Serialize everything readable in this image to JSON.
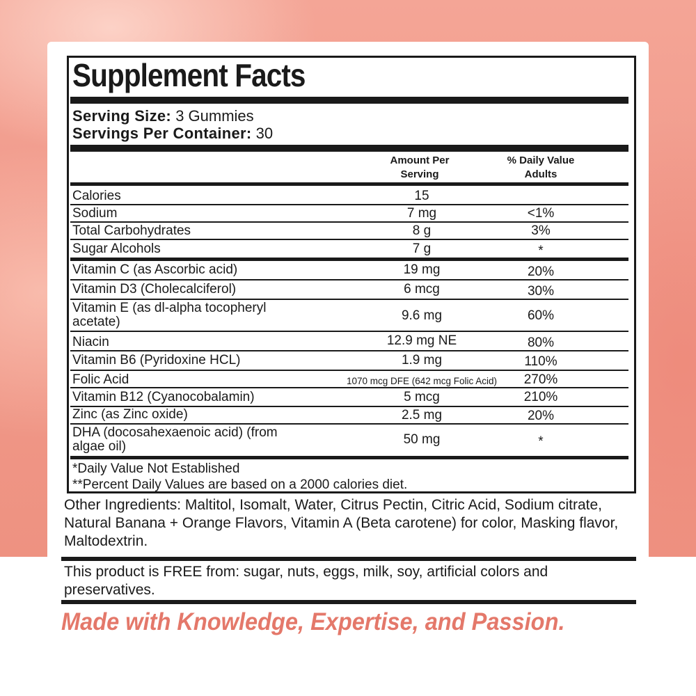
{
  "title": "Supplement Facts",
  "serving_size_label": "Serving Size:",
  "serving_size_value": "3 Gummies",
  "servings_per_container_label": "Servings Per Container:",
  "servings_per_container_value": "30",
  "headers": {
    "amount": "Amount Per Serving",
    "daily_value": "% Daily Value Adults"
  },
  "rows": [
    {
      "name": "Calories",
      "amount": "15",
      "dv": ""
    },
    {
      "name": "Sodium",
      "amount": "7 mg",
      "dv": "<1%"
    },
    {
      "name": "Total Carbohydrates",
      "amount": "8 g",
      "dv": "3%"
    },
    {
      "name": "Sugar Alcohols",
      "amount": "7 g",
      "dv": "*"
    },
    {
      "name": "Vitamin C (as Ascorbic acid)",
      "amount": "19 mg",
      "dv": "20%"
    },
    {
      "name": "Vitamin D3 (Cholecalciferol)",
      "amount": "6 mcg",
      "dv": "30%"
    },
    {
      "name_line1": "Vitamin E (as dl-alpha tocopheryl",
      "name_line2": "acetate)",
      "amount": "9.6 mg",
      "dv": "60%"
    },
    {
      "name": "Niacin",
      "amount": "12.9 mg NE",
      "dv": "80%"
    },
    {
      "name": "Vitamin B6 (Pyridoxine HCL)",
      "amount": "1.9 mg",
      "dv": "110%"
    },
    {
      "name": "Folic Acid",
      "amount": "1070 mcg DFE (642 mcg Folic Acid)",
      "dv": "270%"
    },
    {
      "name": "Vitamin B12 (Cyanocobalamin)",
      "amount": "5 mcg",
      "dv": "210%"
    },
    {
      "name": "Zinc (as Zinc oxide)",
      "amount": "2.5 mg",
      "dv": "20%"
    },
    {
      "name_line1": "DHA (docosahexaenoic acid) (from",
      "name_line2": "algae oil)",
      "amount": "50 mg",
      "dv": "*"
    }
  ],
  "footnotes": [
    "*Daily Value Not Established",
    "**Percent Daily Values are based on a 2000 calories diet."
  ],
  "other_ingredients": "Other Ingredients: Maltitol, Isomalt, Water, Citrus Pectin, Citric Acid, Sodium citrate, Natural Banana + Orange Flavors, Vitamin A (Beta carotene) for color, Masking flavor, Maltodextrin.",
  "free_from": "This product is FREE from: sugar, nuts, eggs, milk, soy, artificial colors and preservatives.",
  "tagline": "Made with Knowledge, Expertise, and Passion.",
  "colors": {
    "background_pink": "#f19a8b",
    "tagline": "#e4786a",
    "text": "#1a1a1a"
  }
}
